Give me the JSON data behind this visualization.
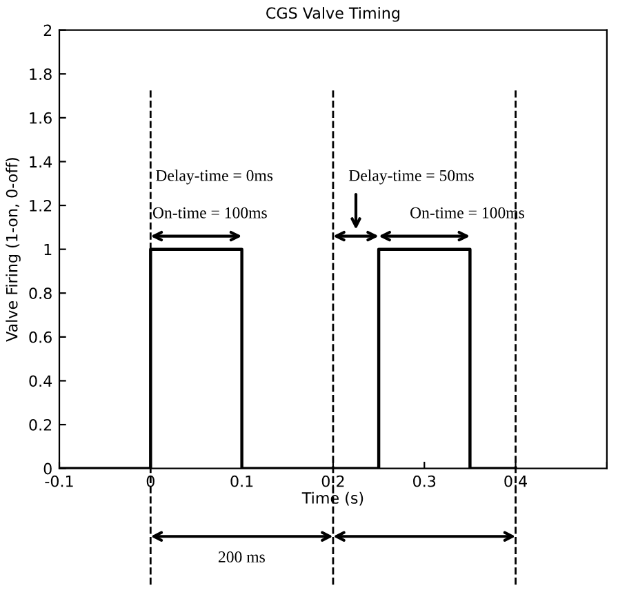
{
  "chart_data": {
    "type": "step",
    "title": "CGS Valve Timing",
    "xlabel": "Time (s)",
    "ylabel": "Valve Firing (1-on, 0-off)",
    "x": [
      -0.1,
      0,
      0.1,
      0.25,
      0.35,
      0.4
    ],
    "series": [
      {
        "color": "#000000",
        "values": [
          0,
          1,
          0,
          1,
          0,
          0
        ]
      }
    ],
    "xlim": [
      -0.1,
      0.5
    ],
    "ylim": [
      0,
      2
    ],
    "xticks": [
      -0.1,
      0,
      0.1,
      0.2,
      0.3,
      0.4,
      {
        "value": 0.5,
        "label": null
      }
    ],
    "yticks": [
      0,
      0.2,
      0.4,
      0.6,
      0.8,
      1,
      1.2,
      1.4,
      1.6,
      1.8,
      2
    ],
    "ref_lines": [
      {
        "axis": "x",
        "value": 0,
        "color": "#000000",
        "line_style": "dashed"
      },
      {
        "axis": "x",
        "value": 0.2,
        "color": "#000000",
        "line_style": "dashed"
      },
      {
        "axis": "x",
        "value": 0.4,
        "color": "#000000",
        "line_style": "dashed"
      }
    ],
    "annotations": [
      "Delay-time = 0ms",
      "On-time = 100ms",
      "Delay-time = 50ms",
      "On-time = 100ms",
      "200 ms"
    ],
    "grid": false,
    "marker": "none",
    "line_style": "solid"
  }
}
